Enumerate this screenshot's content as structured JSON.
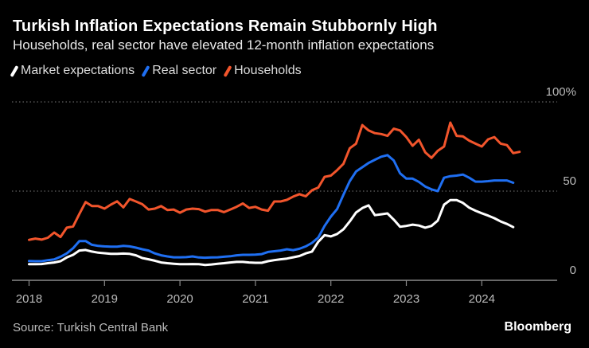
{
  "header": {
    "title": "Turkish Inflation Expectations Remain Stubbornly High",
    "subtitle": "Households, real sector have elevated 12-month inflation expectations"
  },
  "footer": {
    "source": "Source: Turkish Central Bank",
    "brand": "Bloomberg"
  },
  "chart_data": {
    "type": "line",
    "title": "Turkish Inflation Expectations Remain Stubbornly High",
    "subtitle": "Households, real sector have elevated 12-month inflation expectations",
    "x_start": "2018-01",
    "x_frequency": "monthly",
    "x_ticks": [
      "2018",
      "2019",
      "2020",
      "2021",
      "2022",
      "2023",
      "2024"
    ],
    "y_ticks": [
      {
        "value": 0,
        "label": "0"
      },
      {
        "value": 50,
        "label": "50"
      },
      {
        "value": 100,
        "label": "100%"
      }
    ],
    "ylim": [
      0,
      100
    ],
    "grid": "horizontal dotted",
    "legend_placement": "top-left",
    "series": [
      {
        "name": "Market expectations",
        "color": "#ffffff",
        "values": [
          9,
          9,
          9.1,
          9.6,
          10,
          10.7,
          12.8,
          14.3,
          16.7,
          17,
          16.1,
          15.5,
          15.2,
          14.8,
          14.8,
          15,
          14.8,
          14,
          12.5,
          11.8,
          11,
          10,
          9.6,
          9.3,
          9,
          9,
          9.1,
          9,
          8.6,
          8.9,
          9.3,
          9.6,
          10,
          10.3,
          10.3,
          10,
          9.8,
          9.8,
          10.7,
          11.3,
          11.8,
          12.2,
          12.9,
          13.6,
          15.1,
          16.1,
          21.6,
          25.3,
          24.6,
          26,
          28.6,
          33,
          38,
          40.5,
          42,
          36.5,
          37,
          37.5,
          34,
          30,
          30.5,
          31.2,
          30.7,
          29.5,
          30.5,
          33.5,
          42.4,
          45,
          45,
          43.4,
          40.7,
          39,
          37.6,
          36.3,
          34.8,
          33,
          31.6,
          29.8
        ]
      },
      {
        "name": "Real sector",
        "color": "#1f6ff2",
        "values": [
          10.8,
          10.7,
          10.7,
          11.3,
          11.7,
          13.2,
          15.1,
          18,
          22,
          22,
          19.9,
          19.3,
          19,
          18.9,
          18.9,
          19.3,
          19,
          18.3,
          17.4,
          16.7,
          15.1,
          14,
          13.4,
          12.9,
          12.9,
          13,
          13.4,
          12.8,
          12.7,
          12.8,
          12.9,
          13.2,
          13.5,
          14,
          14.3,
          14.3,
          14.4,
          14.7,
          15.9,
          16.3,
          16.7,
          17.4,
          16.9,
          17.7,
          19,
          21,
          24,
          30.5,
          35.7,
          40,
          48,
          55.6,
          61,
          63.4,
          65.8,
          67.6,
          69.3,
          70.2,
          67.2,
          60,
          57,
          57,
          55.2,
          52.6,
          51,
          50,
          57.5,
          58.4,
          58.7,
          59.3,
          57.5,
          55.3,
          55.3,
          55.6,
          56,
          56,
          56,
          54.7
        ]
      },
      {
        "name": "Households",
        "color": "#f2552c",
        "values": [
          22.7,
          23.4,
          22.8,
          23.9,
          26.8,
          24.3,
          29.5,
          30.2,
          37.2,
          43.9,
          41.6,
          41.6,
          40.2,
          42.4,
          44.3,
          40.9,
          45.6,
          44.2,
          42.7,
          39.7,
          40.2,
          41.6,
          39.4,
          39.7,
          37.9,
          39.7,
          40.2,
          39.9,
          38.5,
          39.4,
          39.4,
          38.2,
          39.7,
          41.2,
          43.1,
          40.6,
          41.2,
          39.7,
          39,
          44.2,
          44.2,
          45.1,
          46.9,
          48.3,
          47.1,
          50.5,
          52,
          58,
          58.7,
          61.8,
          65.3,
          74,
          76.6,
          87,
          84,
          82.5,
          82,
          81,
          85,
          84,
          80.3,
          75.4,
          78.8,
          71.8,
          68.6,
          72.6,
          75,
          88.4,
          81,
          80.7,
          78.3,
          76.6,
          75,
          79,
          80.3,
          76.6,
          75.8,
          71.3,
          72
        ]
      }
    ]
  }
}
